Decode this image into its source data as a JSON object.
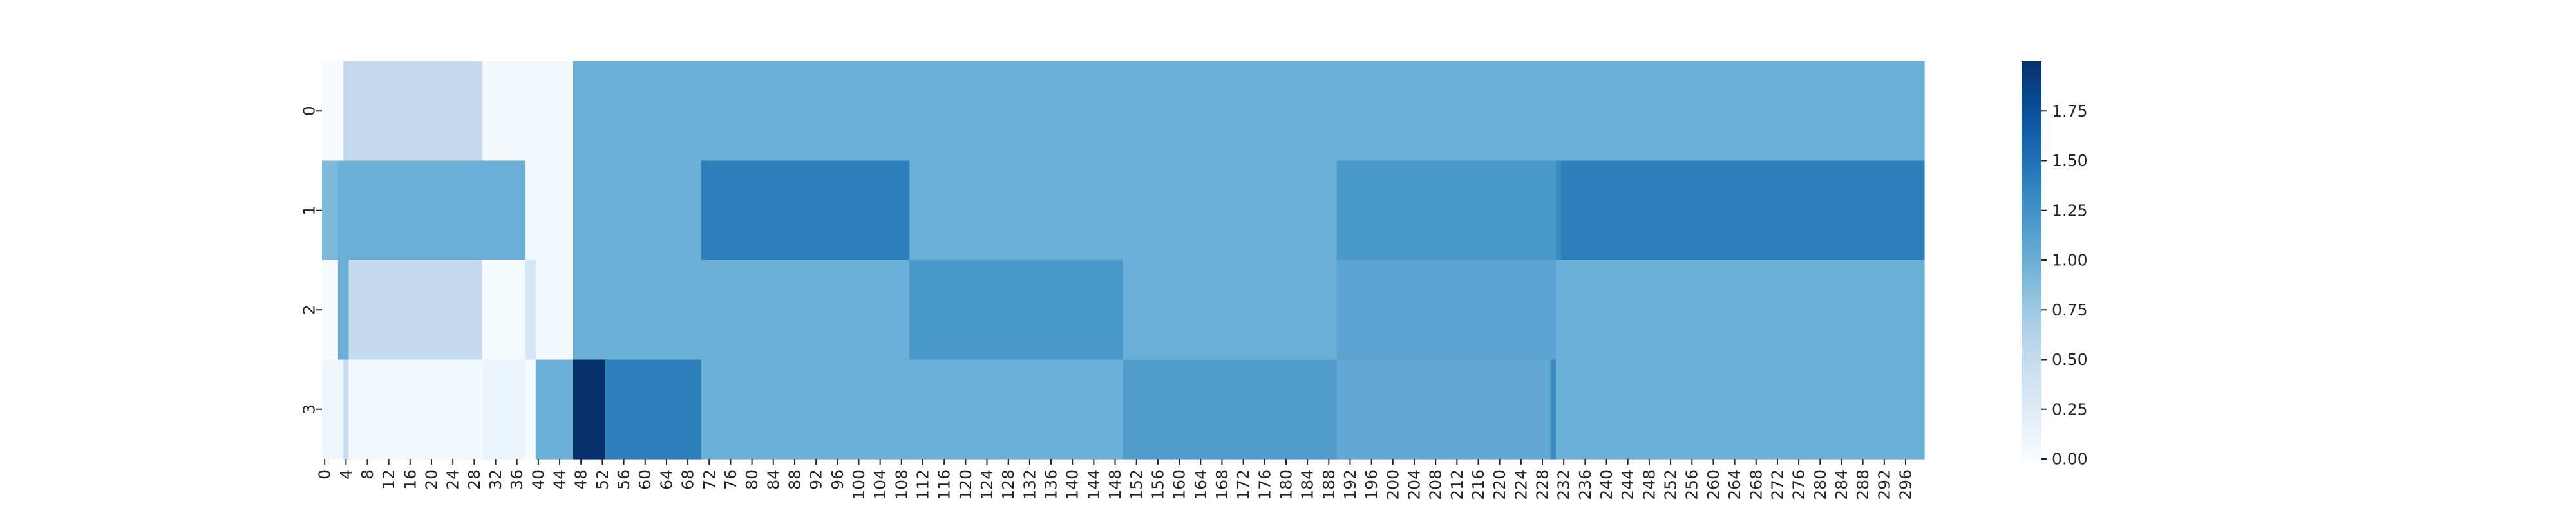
{
  "chart_data": {
    "type": "heatmap",
    "colormap": "Blues",
    "vmin": 0,
    "vmax": 2,
    "n_cols": 300,
    "y_tick_labels": [
      "0",
      "1",
      "2",
      "3"
    ],
    "x_tick_step": 4,
    "x_tick_labels": [
      "0",
      "4",
      "8",
      "12",
      "16",
      "20",
      "24",
      "28",
      "32",
      "36",
      "40",
      "44",
      "48",
      "52",
      "56",
      "60",
      "64",
      "68",
      "72",
      "76",
      "80",
      "84",
      "88",
      "92",
      "96",
      "100",
      "104",
      "108",
      "112",
      "116",
      "120",
      "124",
      "128",
      "132",
      "136",
      "140",
      "144",
      "148",
      "152",
      "156",
      "160",
      "164",
      "168",
      "172",
      "176",
      "180",
      "184",
      "188",
      "192",
      "196",
      "200",
      "204",
      "208",
      "212",
      "216",
      "220",
      "224",
      "228",
      "232",
      "236",
      "240",
      "244",
      "248",
      "252",
      "256",
      "260",
      "264",
      "268",
      "272",
      "276",
      "280",
      "284",
      "288",
      "292",
      "296"
    ],
    "rows": [
      [
        {
          "start": 0,
          "end": 4,
          "value": 0.0
        },
        {
          "start": 4,
          "end": 5,
          "value": 0.55
        },
        {
          "start": 5,
          "end": 30,
          "value": 0.5
        },
        {
          "start": 30,
          "end": 47,
          "value": 0.03
        },
        {
          "start": 47,
          "end": 300,
          "value": 1.0
        }
      ],
      [
        {
          "start": 0,
          "end": 3,
          "value": 0.9
        },
        {
          "start": 3,
          "end": 38,
          "value": 1.0
        },
        {
          "start": 38,
          "end": 47,
          "value": 0.03
        },
        {
          "start": 47,
          "end": 71,
          "value": 1.0
        },
        {
          "start": 71,
          "end": 110,
          "value": 1.4
        },
        {
          "start": 110,
          "end": 190,
          "value": 1.0
        },
        {
          "start": 190,
          "end": 231,
          "value": 1.2
        },
        {
          "start": 231,
          "end": 232,
          "value": 1.3
        },
        {
          "start": 232,
          "end": 300,
          "value": 1.4
        }
      ],
      [
        {
          "start": 0,
          "end": 3,
          "value": 0.0
        },
        {
          "start": 3,
          "end": 5,
          "value": 1.0
        },
        {
          "start": 5,
          "end": 30,
          "value": 0.5
        },
        {
          "start": 30,
          "end": 38,
          "value": 0.02
        },
        {
          "start": 38,
          "end": 40,
          "value": 0.35
        },
        {
          "start": 40,
          "end": 47,
          "value": 0.03
        },
        {
          "start": 47,
          "end": 110,
          "value": 1.0
        },
        {
          "start": 110,
          "end": 150,
          "value": 1.2
        },
        {
          "start": 150,
          "end": 190,
          "value": 1.0
        },
        {
          "start": 190,
          "end": 231,
          "value": 1.1
        },
        {
          "start": 231,
          "end": 300,
          "value": 1.0
        }
      ],
      [
        {
          "start": 0,
          "end": 4,
          "value": 0.08
        },
        {
          "start": 4,
          "end": 5,
          "value": 0.45
        },
        {
          "start": 5,
          "end": 30,
          "value": 0.04
        },
        {
          "start": 30,
          "end": 38,
          "value": 0.1
        },
        {
          "start": 38,
          "end": 40,
          "value": 0.02
        },
        {
          "start": 40,
          "end": 47,
          "value": 1.0
        },
        {
          "start": 47,
          "end": 53,
          "value": 2.0
        },
        {
          "start": 53,
          "end": 71,
          "value": 1.4
        },
        {
          "start": 71,
          "end": 150,
          "value": 1.0
        },
        {
          "start": 150,
          "end": 190,
          "value": 1.15
        },
        {
          "start": 190,
          "end": 230,
          "value": 1.05
        },
        {
          "start": 230,
          "end": 231,
          "value": 1.3
        },
        {
          "start": 231,
          "end": 300,
          "value": 1.0
        }
      ]
    ],
    "colorbar": {
      "ticks": [
        0.0,
        0.25,
        0.5,
        0.75,
        1.0,
        1.25,
        1.5,
        1.75
      ],
      "tick_labels": [
        "0.00",
        "0.25",
        "0.50",
        "0.75",
        "1.00",
        "1.25",
        "1.50",
        "1.75"
      ]
    }
  }
}
